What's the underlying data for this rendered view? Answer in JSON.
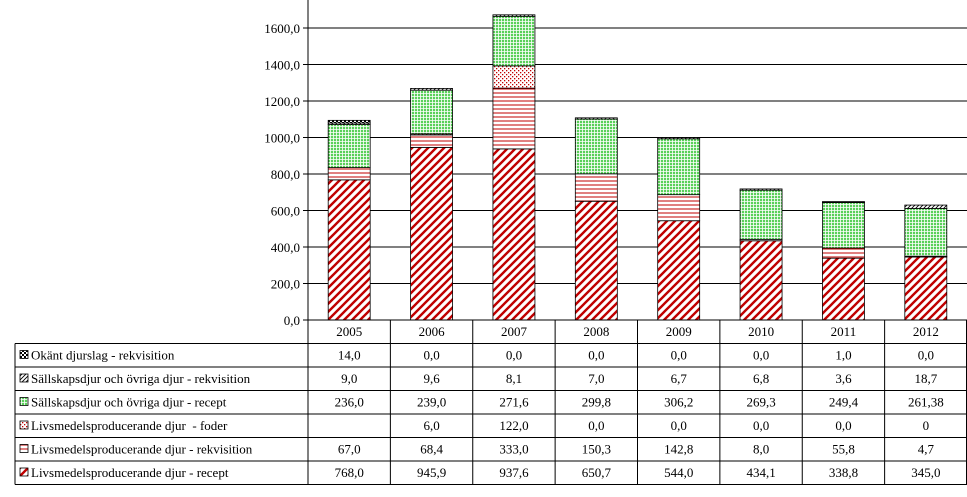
{
  "chart_data": {
    "type": "bar",
    "stacked": true,
    "with_data_table": true,
    "categories": [
      "2005",
      "2006",
      "2007",
      "2008",
      "2009",
      "2010",
      "2011",
      "2012"
    ],
    "ylim": [
      0,
      1600
    ],
    "yticks": [
      {
        "value": 0,
        "label": "0,0"
      },
      {
        "value": 200,
        "label": "200,0"
      },
      {
        "value": 400,
        "label": "400,0"
      },
      {
        "value": 600,
        "label": "600,0"
      },
      {
        "value": 800,
        "label": "800,0"
      },
      {
        "value": 1000,
        "label": "1000,0"
      },
      {
        "value": 1200,
        "label": "1200,0"
      },
      {
        "value": 1400,
        "label": "1400,0"
      },
      {
        "value": 1600,
        "label": "1600,0"
      }
    ],
    "grid": "horizontal",
    "series": [
      {
        "name": "Livsmedelsproducerande djur - recept",
        "color": "#c00000",
        "pattern": "diagonal",
        "values": [
          768.0,
          945.9,
          937.6,
          650.7,
          544.0,
          434.1,
          338.8,
          345.0
        ],
        "labels": [
          "768,0",
          "945,9",
          "937,6",
          "650,7",
          "544,0",
          "434,1",
          "338,8",
          "345,0"
        ]
      },
      {
        "name": "Livsmedelsproducerande djur - rekvisition",
        "color": "#c00000",
        "pattern": "horizontal",
        "values": [
          67.0,
          68.4,
          333.0,
          150.3,
          142.8,
          8.0,
          55.8,
          4.7
        ],
        "labels": [
          "67,0",
          "68,4",
          "333,0",
          "150,3",
          "142,8",
          "8,0",
          "55,8",
          "4,7"
        ]
      },
      {
        "name": "Livsmedelsproducerande djur  - foder",
        "color": "#c00000",
        "pattern": "dots",
        "values": [
          0,
          6.0,
          122.0,
          0.0,
          0.0,
          0.0,
          0.0,
          0
        ],
        "labels": [
          "",
          "6,0",
          "122,0",
          "0,0",
          "0,0",
          "0,0",
          "0,0",
          "0"
        ]
      },
      {
        "name": "Sällskapsdjur och övriga djur - recept",
        "color": "#00a000",
        "pattern": "grid",
        "values": [
          236.0,
          239.0,
          271.6,
          299.8,
          306.2,
          269.3,
          249.4,
          261.38
        ],
        "labels": [
          "236,0",
          "239,0",
          "271,6",
          "299,8",
          "306,2",
          "269,3",
          "249,4",
          "261,38"
        ]
      },
      {
        "name": "Sällskapsdjur och övriga djur - rekvisition",
        "color": "#000000",
        "pattern": "diagonal-fine",
        "values": [
          9.0,
          9.6,
          8.1,
          7.0,
          6.7,
          6.8,
          3.6,
          18.7
        ],
        "labels": [
          "9,0",
          "9,6",
          "8,1",
          "7,0",
          "6,7",
          "6,8",
          "3,6",
          "18,7"
        ]
      },
      {
        "name": "Okänt djurslag - rekvisition",
        "color": "#000000",
        "pattern": "checker",
        "values": [
          14.0,
          0.0,
          0.0,
          0.0,
          0.0,
          0.0,
          1.0,
          0.0
        ],
        "labels": [
          "14,0",
          "0,0",
          "0,0",
          "0,0",
          "0,0",
          "0,0",
          "1,0",
          "0,0"
        ]
      }
    ]
  }
}
